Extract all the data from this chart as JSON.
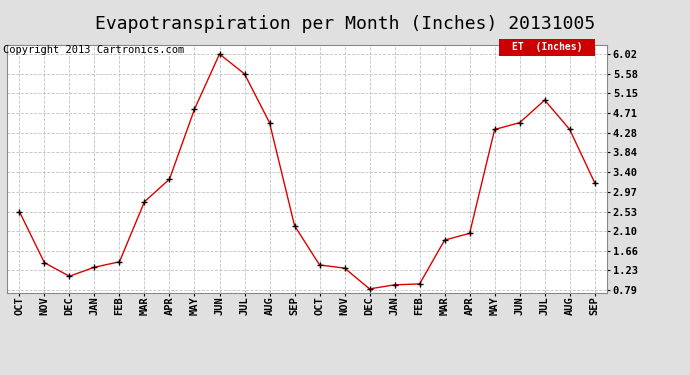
{
  "title": "Evapotranspiration per Month (Inches) 20131005",
  "copyright": "Copyright 2013 Cartronics.com",
  "legend_label": "ET  (Inches)",
  "x_labels": [
    "OCT",
    "NOV",
    "DEC",
    "JAN",
    "FEB",
    "MAR",
    "APR",
    "MAY",
    "JUN",
    "JUL",
    "AUG",
    "SEP",
    "OCT",
    "NOV",
    "DEC",
    "JAN",
    "FEB",
    "MAR",
    "APR",
    "MAY",
    "JUN",
    "JUL",
    "AUG",
    "SEP"
  ],
  "y_values": [
    2.53,
    1.4,
    1.1,
    1.3,
    1.42,
    2.75,
    3.25,
    4.8,
    6.02,
    5.58,
    4.5,
    2.22,
    1.35,
    1.28,
    0.82,
    0.91,
    0.93,
    1.9,
    2.05,
    4.35,
    4.5,
    5.0,
    4.35,
    3.17
  ],
  "y_ticks": [
    0.79,
    1.23,
    1.66,
    2.1,
    2.53,
    2.97,
    3.4,
    3.84,
    4.28,
    4.71,
    5.15,
    5.58,
    6.02
  ],
  "line_color": "#dd0000",
  "grid_color": "#bbbbbb",
  "background_color": "#e0e0e0",
  "plot_bg_color": "#ffffff",
  "title_fontsize": 13,
  "tick_fontsize": 7.5,
  "copyright_fontsize": 7.5,
  "legend_color": "#cc0000",
  "legend_text_color": "#ffffff"
}
